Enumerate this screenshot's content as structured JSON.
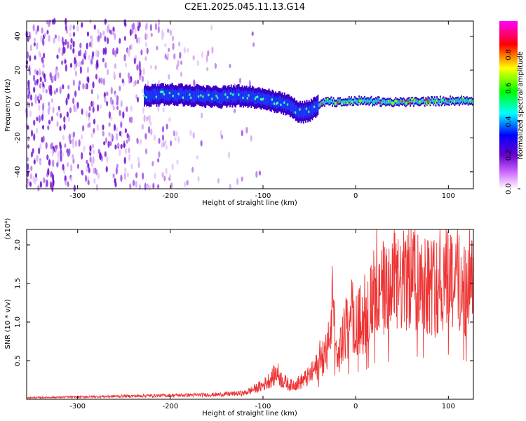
{
  "title": "C2E1.2025.045.11.13.G14",
  "chart_data": [
    {
      "type": "heatmap",
      "xlabel": "Height of straight line (km)",
      "ylabel": "Frequency (Hz)",
      "xlim": [
        -355,
        127
      ],
      "ylim": [
        -50,
        49
      ],
      "xticks": [
        -300,
        -200,
        -100,
        0,
        100
      ],
      "yticks": [
        -40,
        -20,
        0,
        20,
        40
      ],
      "colorbar": {
        "label": "Normalized spectral amplitude",
        "range": [
          0,
          1
        ],
        "ticks": [
          0.0,
          0.2,
          0.4,
          0.6,
          0.8
        ],
        "colors": [
          "#ffffff",
          "#cc66ff",
          "#6600cc",
          "#0000ff",
          "#00ffff",
          "#00ff00",
          "#ffff00",
          "#ff0000",
          "#ff00ff"
        ]
      },
      "ridge": {
        "height_km": [
          -225,
          -200,
          -175,
          -150,
          -125,
          -100,
          -75,
          -60,
          -50,
          -40,
          -30,
          -20,
          0,
          50,
          100,
          127
        ],
        "frequency_hz": [
          5,
          6,
          5,
          4,
          5,
          3,
          0,
          -5,
          -4,
          0,
          2,
          1,
          2,
          1,
          2,
          2
        ]
      },
      "noise_region_km": [
        -355,
        -160
      ]
    },
    {
      "type": "line",
      "xlabel": "Height of straight line (km)",
      "ylabel": "SNR (10 * v/v)",
      "yscale_label": "(x10⁴)",
      "xlim": [
        -355,
        127
      ],
      "ylim": [
        0,
        2.2
      ],
      "xticks": [
        -300,
        -200,
        -100,
        0,
        100
      ],
      "yticks": [
        0.5,
        1.0,
        1.5,
        2.0
      ],
      "color": "#ee3333",
      "series": [
        {
          "x": [
            -355,
            -300,
            -250,
            -200,
            -150,
            -120,
            -100,
            -90,
            -85,
            -80,
            -70,
            -60,
            -50,
            -40,
            -30,
            -25,
            -20,
            -15,
            -10,
            0,
            10,
            20,
            40,
            60,
            80,
            90,
            100,
            110,
            120,
            127
          ],
          "y": [
            0.02,
            0.03,
            0.04,
            0.05,
            0.06,
            0.08,
            0.18,
            0.28,
            0.35,
            0.25,
            0.18,
            0.22,
            0.3,
            0.45,
            0.65,
            1.25,
            0.5,
            0.75,
            0.9,
            1.0,
            1.05,
            1.35,
            1.4,
            1.6,
            1.5,
            1.4,
            1.65,
            1.55,
            1.4,
            1.45
          ]
        }
      ]
    }
  ]
}
